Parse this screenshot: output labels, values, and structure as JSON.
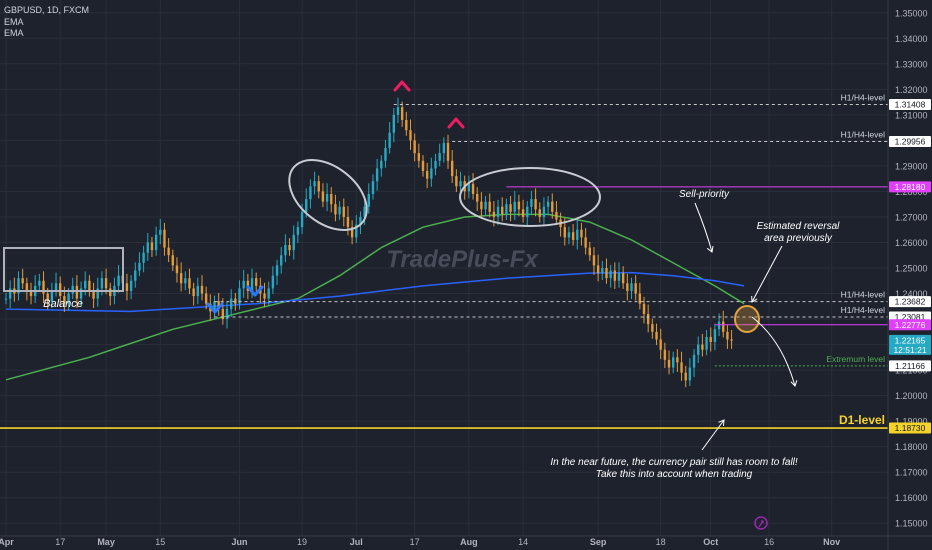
{
  "header": {
    "symbol_line": "GBPUSD, 1D, FXCM",
    "indicator_1": "EMA",
    "indicator_2": "EMA"
  },
  "watermark": "TradePlus-Fx",
  "colors": {
    "background": "#1e222d",
    "grid": "#2a2e39",
    "axis_text": "#b2b5be",
    "candle_up": "#26a9c4",
    "candle_down": "#e39a3a",
    "ema_fast": "#4caf50",
    "ema_slow": "#2962ff",
    "magenta": "#e040fb",
    "d1_level": "#f5d327",
    "dashed": "#c8c8c8",
    "extremum": "#4caf50",
    "pink_marker": "#e91e63",
    "blue_marker": "#2979ff"
  },
  "chart_data": {
    "type": "candlestick",
    "title": "GBPUSD, 1D, FXCM",
    "x_tick_labels": [
      "Apr",
      "17",
      "May",
      "15",
      "Jun",
      "19",
      "Jul",
      "17",
      "Aug",
      "14",
      "Sep",
      "18",
      "Oct",
      "16",
      "Nov"
    ],
    "y_tick_labels": [
      "1.35000",
      "1.34000",
      "1.33000",
      "1.32000",
      "1.31000",
      "1.30000",
      "1.29000",
      "1.28000",
      "1.27000",
      "1.26000",
      "1.25000",
      "1.24000",
      "1.23000",
      "1.22000",
      "1.21000",
      "1.20000",
      "1.19000",
      "1.18000",
      "1.17000",
      "1.16000",
      "1.15000"
    ],
    "ylim": [
      1.145,
      1.355
    ],
    "grid": true,
    "closes": [
      1.238,
      1.242,
      1.24,
      1.246,
      1.244,
      1.241,
      1.239,
      1.243,
      1.245,
      1.24,
      1.237,
      1.241,
      1.244,
      1.239,
      1.236,
      1.24,
      1.243,
      1.238,
      1.242,
      1.245,
      1.241,
      1.238,
      1.242,
      1.246,
      1.242,
      1.239,
      1.243,
      1.247,
      1.244,
      1.241,
      1.245,
      1.249,
      1.252,
      1.256,
      1.26,
      1.257,
      1.263,
      1.265,
      1.258,
      1.255,
      1.251,
      1.248,
      1.244,
      1.246,
      1.242,
      1.239,
      1.243,
      1.24,
      1.236,
      1.233,
      1.237,
      1.234,
      1.23,
      1.234,
      1.238,
      1.236,
      1.242,
      1.245,
      1.241,
      1.246,
      1.243,
      1.24,
      1.238,
      1.242,
      1.247,
      1.251,
      1.255,
      1.259,
      1.257,
      1.263,
      1.266,
      1.272,
      1.277,
      1.282,
      1.284,
      1.28,
      1.276,
      1.279,
      1.275,
      1.271,
      1.274,
      1.27,
      1.266,
      1.262,
      1.267,
      1.27,
      1.274,
      1.279,
      1.284,
      1.289,
      1.292,
      1.297,
      1.303,
      1.31,
      1.313,
      1.308,
      1.304,
      1.3,
      1.295,
      1.292,
      1.288,
      1.285,
      1.289,
      1.292,
      1.295,
      1.299,
      1.292,
      1.286,
      1.282,
      1.284,
      1.28,
      1.283,
      1.279,
      1.276,
      1.273,
      1.276,
      1.272,
      1.27,
      1.274,
      1.271,
      1.275,
      1.272,
      1.276,
      1.273,
      1.27,
      1.274,
      1.277,
      1.273,
      1.27,
      1.274,
      1.276,
      1.272,
      1.269,
      1.266,
      1.262,
      1.264,
      1.261,
      1.265,
      1.262,
      1.258,
      1.255,
      1.251,
      1.248,
      1.25,
      1.246,
      1.249,
      1.245,
      1.248,
      1.244,
      1.241,
      1.244,
      1.24,
      1.236,
      1.232,
      1.228,
      1.225,
      1.222,
      1.218,
      1.214,
      1.211,
      1.215,
      1.213,
      1.209,
      1.206,
      1.211,
      1.216,
      1.22,
      1.218,
      1.223,
      1.221,
      1.226,
      1.229,
      1.225,
      1.222,
      1.2215
    ],
    "ema_fast": {
      "name": "EMA",
      "values": [
        [
          0,
          1.2062
        ],
        [
          20,
          1.215
        ],
        [
          40,
          1.226
        ],
        [
          60,
          1.234
        ],
        [
          70,
          1.238
        ],
        [
          80,
          1.247
        ],
        [
          90,
          1.258
        ],
        [
          100,
          1.266
        ],
        [
          110,
          1.27
        ],
        [
          120,
          1.271
        ],
        [
          130,
          1.271
        ],
        [
          140,
          1.268
        ],
        [
          150,
          1.261
        ],
        [
          160,
          1.252
        ],
        [
          170,
          1.243
        ],
        [
          177,
          1.236
        ]
      ]
    },
    "ema_slow": {
      "name": "EMA",
      "values": [
        [
          0,
          1.2339
        ],
        [
          30,
          1.233
        ],
        [
          60,
          1.236
        ],
        [
          80,
          1.239
        ],
        [
          100,
          1.243
        ],
        [
          120,
          1.246
        ],
        [
          140,
          1.248
        ],
        [
          150,
          1.2482
        ],
        [
          160,
          1.247
        ],
        [
          170,
          1.245
        ],
        [
          177,
          1.243
        ]
      ]
    },
    "price_labels": [
      {
        "value": 1.31408,
        "label": "1.31408",
        "caption": "H1/H4-level",
        "style": "dashed"
      },
      {
        "value": 1.29956,
        "label": "1.29956",
        "caption": "H1/H4-level",
        "style": "dashed"
      },
      {
        "value": 1.2818,
        "label": "1.28180",
        "caption": "",
        "style": "magenta"
      },
      {
        "value": 1.23682,
        "label": "1.23682",
        "caption": "H1/H4-level",
        "style": "dashed"
      },
      {
        "value": 1.23081,
        "label": "1.23081",
        "caption": "H1/H4-level",
        "style": "dashed"
      },
      {
        "value": 1.22776,
        "label": "1.22776",
        "caption": "",
        "style": "magenta"
      },
      {
        "value": 1.22165,
        "label": "1.22165",
        "caption": "",
        "style": "last"
      },
      {
        "value": 1.21166,
        "label": "1.21166",
        "caption": "Extremum  level",
        "style": "extremum"
      },
      {
        "value": 1.1873,
        "label": "1.18730",
        "caption": "D1-level",
        "style": "d1"
      }
    ],
    "last_price_countdown": "12:51:21"
  },
  "annotations": {
    "balance": "Balance",
    "sell_priority": "Sell-priority",
    "reversal_line1": "Estimated reversal",
    "reversal_line2": "area previously",
    "bottom_line1": "In the near future, the currency pair still has room to fall!",
    "bottom_line2": "Take this into account when trading"
  }
}
